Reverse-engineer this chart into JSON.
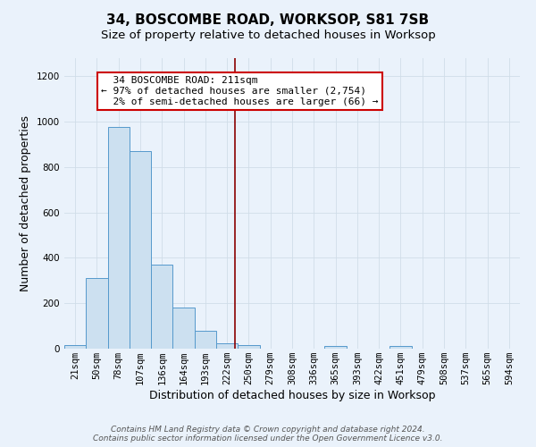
{
  "title": "34, BOSCOMBE ROAD, WORKSOP, S81 7SB",
  "subtitle": "Size of property relative to detached houses in Worksop",
  "xlabel": "Distribution of detached houses by size in Worksop",
  "ylabel": "Number of detached properties",
  "footer1": "Contains HM Land Registry data © Crown copyright and database right 2024.",
  "footer2": "Contains public sector information licensed under the Open Government Licence v3.0.",
  "bin_labels": [
    "21sqm",
    "50sqm",
    "78sqm",
    "107sqm",
    "136sqm",
    "164sqm",
    "193sqm",
    "222sqm",
    "250sqm",
    "279sqm",
    "308sqm",
    "336sqm",
    "365sqm",
    "393sqm",
    "422sqm",
    "451sqm",
    "479sqm",
    "508sqm",
    "537sqm",
    "565sqm",
    "594sqm"
  ],
  "bar_heights": [
    15,
    310,
    975,
    870,
    370,
    180,
    80,
    25,
    15,
    0,
    0,
    0,
    10,
    0,
    0,
    10,
    0,
    0,
    0,
    0,
    0
  ],
  "bar_color": "#cce0f0",
  "bar_edge_color": "#5599cc",
  "vline_x": 7.35,
  "vline_color": "#8b0000",
  "annotation_text": "  34 BOSCOMBE ROAD: 211sqm\n← 97% of detached houses are smaller (2,754)\n  2% of semi-detached houses are larger (66) →",
  "annotation_box_color": "#ffffff",
  "annotation_box_edge": "#cc0000",
  "ylim": [
    0,
    1280
  ],
  "background_color": "#eaf2fb",
  "grid_color": "#d0dde8",
  "title_fontsize": 11,
  "subtitle_fontsize": 9.5,
  "xlabel_fontsize": 9,
  "ylabel_fontsize": 9,
  "tick_fontsize": 7.5,
  "footer_fontsize": 6.5
}
